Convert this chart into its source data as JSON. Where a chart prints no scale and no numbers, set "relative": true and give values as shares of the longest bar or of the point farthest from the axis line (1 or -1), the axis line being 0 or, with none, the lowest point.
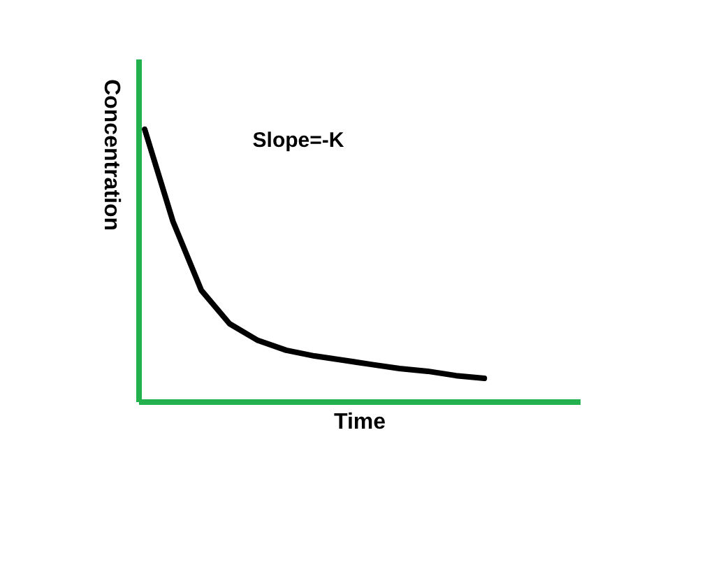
{
  "chart_data": {
    "type": "line",
    "relative": true,
    "xlabel": "Time",
    "ylabel": "Concentration",
    "annotations": [
      "Slope=-K"
    ],
    "categories": [
      null,
      null,
      null,
      null,
      null,
      null,
      null,
      null,
      null,
      null,
      null,
      null,
      null
    ],
    "series": [
      {
        "color": "#000000",
        "values": [
          1,
          0.662,
          0.41,
          0.287,
          0.226,
          0.19,
          0.169,
          0.154,
          0.138,
          0.123,
          0.113,
          0.097,
          0.087
        ]
      }
    ],
    "grid": false,
    "marker": "none",
    "line_style": "solid"
  }
}
